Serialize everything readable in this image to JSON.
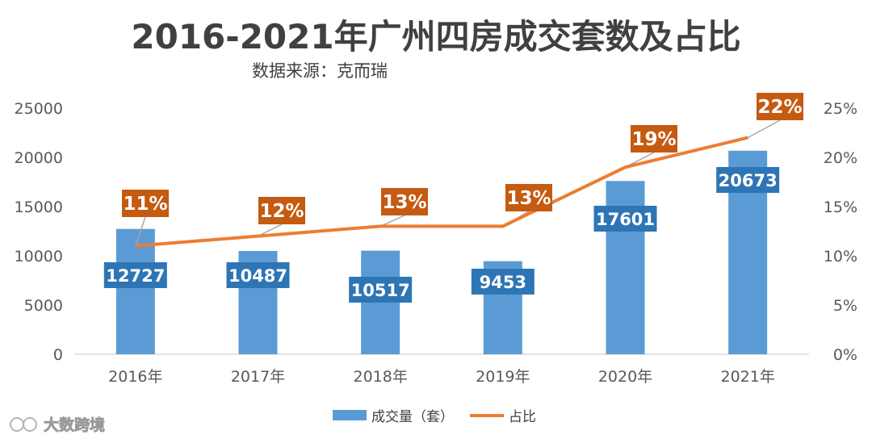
{
  "chart_data": {
    "type": "bar",
    "title": "2016-2021年广州四房成交套数及占比",
    "subtitle": "数据来源：克而瑞",
    "categories": [
      "2016年",
      "2017年",
      "2018年",
      "2019年",
      "2020年",
      "2021年"
    ],
    "series": [
      {
        "name": "成交量（套）",
        "type": "bar",
        "axis": "left",
        "color": "#5b9bd5",
        "values": [
          12727,
          10487,
          10517,
          9453,
          17601,
          20673
        ]
      },
      {
        "name": "占比",
        "type": "line",
        "axis": "right",
        "color": "#ed7d31",
        "values": [
          11,
          12,
          13,
          13,
          19,
          22
        ],
        "labels": [
          "11%",
          "12%",
          "13%",
          "13%",
          "19%",
          "22%"
        ]
      }
    ],
    "ylim_left": [
      0,
      25000
    ],
    "yticks_left": [
      "0",
      "5000",
      "10000",
      "15000",
      "20000",
      "25000"
    ],
    "ylim_right": [
      0,
      25
    ],
    "yticks_right": [
      "0%",
      "5%",
      "10%",
      "15%",
      "20%",
      "25%"
    ],
    "bar_label_color": "#2e75b6",
    "pct_label_color": "#c55a11",
    "grid": false,
    "legend": "bottom"
  },
  "watermark": "大数跨境"
}
